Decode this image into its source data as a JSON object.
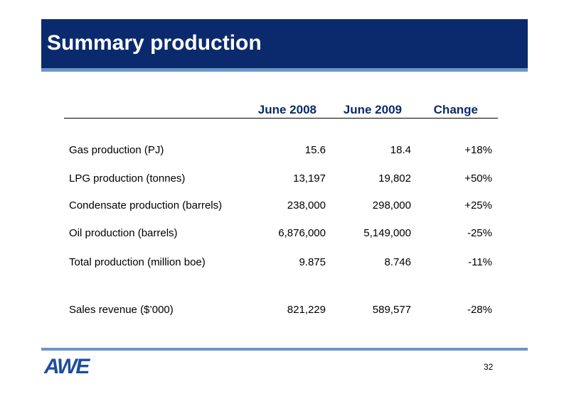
{
  "header": {
    "title": "Summary production"
  },
  "table": {
    "columns": [
      "June 2008",
      "June 2009",
      "Change"
    ],
    "rows": [
      [
        "Gas production (PJ)",
        "15.6",
        "18.4",
        "+18%"
      ],
      [
        "LPG production (tonnes)",
        "13,197",
        "19,802",
        "+50%"
      ],
      [
        "Condensate production (barrels)",
        "238,000",
        "298,000",
        "+25%"
      ],
      [
        "Oil production (barrels)",
        "6,876,000",
        "5,149,000",
        "-25%"
      ],
      [
        "Total production (million boe)",
        "9.875",
        "8.746",
        "-11%"
      ],
      [
        "Sales revenue ($’000)",
        "821,229",
        "589,577",
        "-28%"
      ]
    ]
  },
  "footer": {
    "logo": "AWE",
    "page": "32"
  }
}
